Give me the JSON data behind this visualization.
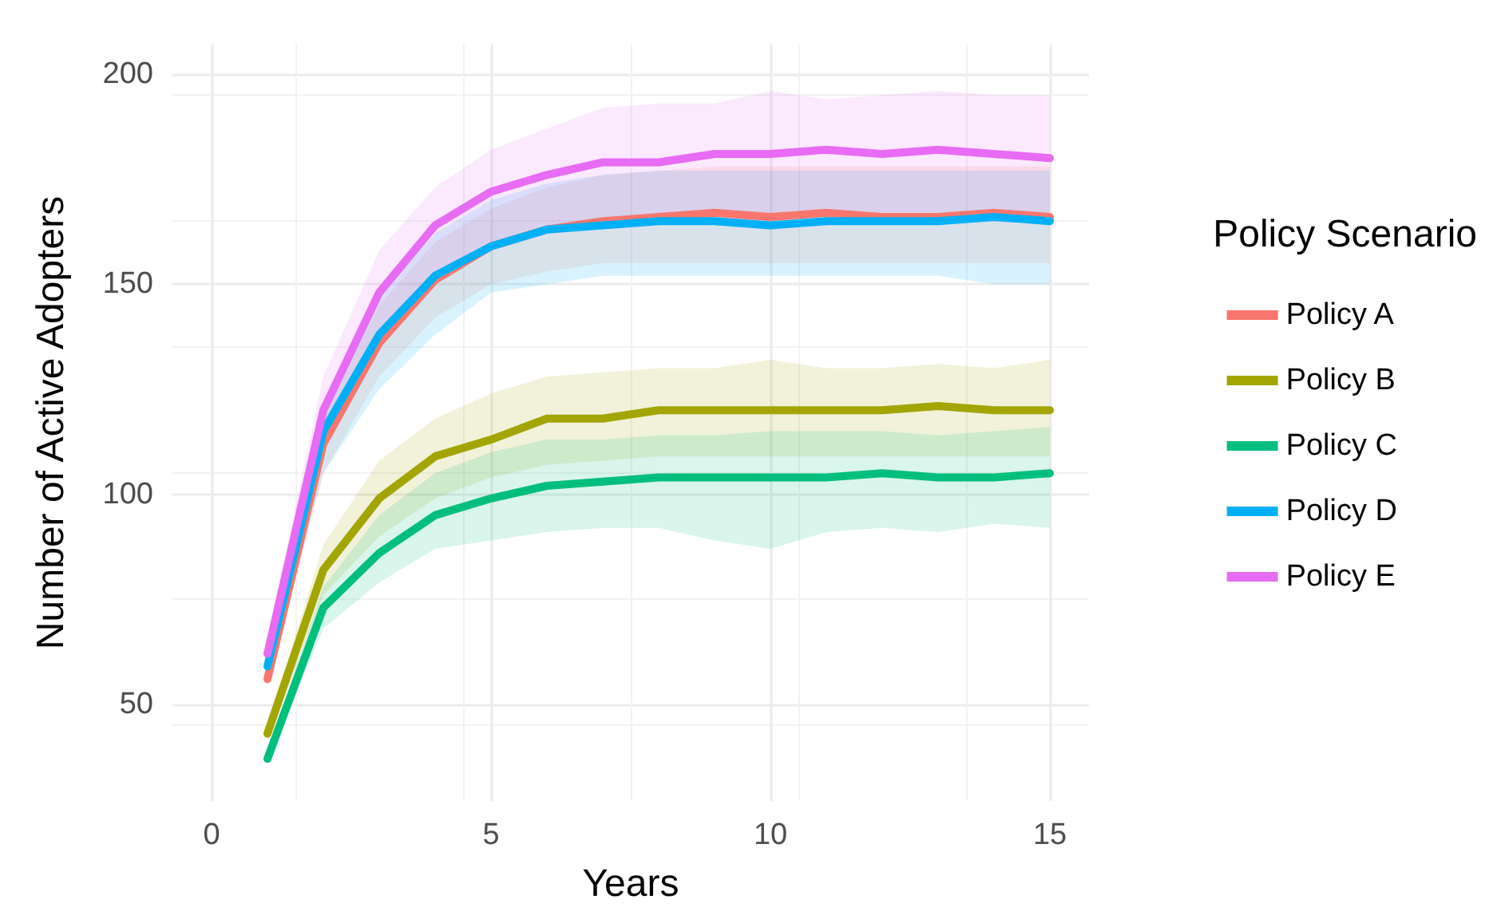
{
  "chart_data": {
    "type": "line",
    "xlabel": "Years",
    "ylabel": "Number of Active Adopters",
    "legend_title": "Policy Scenario",
    "legend": "right",
    "grid": true,
    "line_style": "solid",
    "marker": "none",
    "x": [
      1,
      2,
      3,
      4,
      5,
      6,
      7,
      8,
      9,
      10,
      11,
      12,
      13,
      14,
      15
    ],
    "xlim": [
      -0.7,
      15.7
    ],
    "xticks": [
      0,
      5,
      10,
      15
    ],
    "ylim": [
      27,
      207
    ],
    "yticks": [
      50,
      100,
      150,
      200
    ],
    "series": [
      {
        "name": "Policy A",
        "color": "#f8766d",
        "values": [
          56,
          112,
          136,
          151,
          159,
          163,
          165,
          166,
          167,
          166,
          167,
          166,
          166,
          167,
          166
        ],
        "lower": [
          54,
          105,
          128,
          142,
          150,
          153,
          155,
          155,
          155,
          155,
          155,
          155,
          155,
          155,
          155
        ],
        "upper": [
          59,
          118,
          145,
          160,
          168,
          173,
          176,
          177,
          178,
          178,
          178,
          178,
          178,
          178,
          178
        ]
      },
      {
        "name": "Policy B",
        "color": "#a3a500",
        "values": [
          43,
          82,
          99,
          109,
          113,
          118,
          118,
          120,
          120,
          120,
          120,
          120,
          121,
          120,
          120
        ],
        "lower": [
          41,
          76,
          90,
          99,
          104,
          107,
          108,
          109,
          109,
          109,
          109,
          109,
          109,
          109,
          109
        ],
        "upper": [
          45,
          88,
          108,
          118,
          124,
          128,
          129,
          130,
          130,
          132,
          130,
          130,
          131,
          130,
          132
        ]
      },
      {
        "name": "Policy C",
        "color": "#00bf7d",
        "values": [
          37,
          73,
          86,
          95,
          99,
          102,
          103,
          104,
          104,
          104,
          104,
          105,
          104,
          104,
          105
        ],
        "lower": [
          36,
          68,
          79,
          87,
          89,
          91,
          92,
          92,
          89,
          87,
          91,
          92,
          91,
          93,
          92
        ],
        "upper": [
          39,
          78,
          95,
          105,
          110,
          113,
          113,
          114,
          114,
          115,
          115,
          115,
          114,
          115,
          116
        ]
      },
      {
        "name": "Policy D",
        "color": "#00b0f6",
        "values": [
          59,
          115,
          138,
          152,
          159,
          163,
          164,
          165,
          165,
          164,
          165,
          165,
          165,
          166,
          165
        ],
        "lower": [
          57,
          105,
          125,
          138,
          148,
          150,
          152,
          152,
          152,
          152,
          152,
          152,
          152,
          150,
          150
        ],
        "upper": [
          61,
          122,
          148,
          162,
          170,
          174,
          176,
          177,
          177,
          177,
          177,
          177,
          177,
          177,
          177
        ]
      },
      {
        "name": "Policy E",
        "color": "#e76bf3",
        "values": [
          62,
          120,
          148,
          164,
          172,
          176,
          179,
          179,
          181,
          181,
          182,
          181,
          182,
          181,
          180
        ],
        "lower": [
          59,
          110,
          136,
          152,
          160,
          164,
          166,
          167,
          167,
          167,
          168,
          167,
          167,
          167,
          167
        ],
        "upper": [
          66,
          128,
          158,
          173,
          182,
          187,
          192,
          193,
          193,
          196,
          194,
          195,
          196,
          195,
          195
        ]
      }
    ]
  }
}
